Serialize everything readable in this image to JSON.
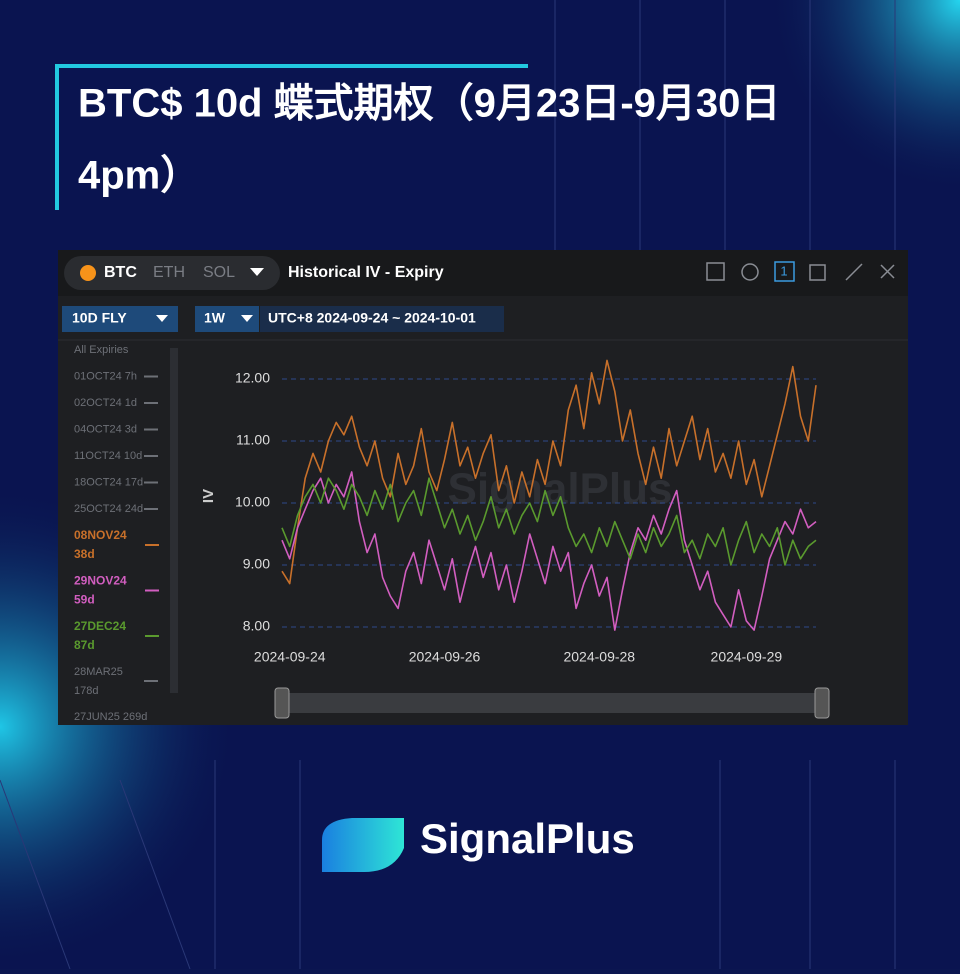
{
  "header": {
    "title_lines": [
      "BTC$ 10d 蝶式期权（9月23日-9月30日",
      "4pm）"
    ]
  },
  "ui": {
    "coins": [
      "BTC",
      "ETH",
      "SOL"
    ],
    "panel_title": "Historical IV - Expiry",
    "tool_badge": "1",
    "metric": "10D FLY",
    "period": "1W",
    "range": "UTC+8 2024-09-24 ~ 2024-10-01",
    "sidebar_top": [
      "All Expiries",
      "01OCT24 7h",
      "02OCT24 1d",
      "04OCT24 3d",
      "11OCT24 10d",
      "18OCT24 17d",
      "25OCT24 24d"
    ],
    "sidebar_bottom": [
      [
        "28MAR25",
        "178d"
      ],
      [
        "27JUN25 269d"
      ]
    ],
    "watermark": "SignalPlus"
  },
  "footer": {
    "brand": "SignalPlus"
  },
  "chart_data": {
    "type": "line",
    "y_label": "IV",
    "categories": [
      null,
      "2024-09-24",
      null,
      null,
      null,
      null,
      null,
      null,
      null,
      null,
      null,
      null,
      null,
      null,
      null,
      null,
      null,
      null,
      null,
      null,
      null,
      "2024-09-26",
      null,
      null,
      null,
      null,
      null,
      null,
      null,
      null,
      null,
      null,
      null,
      null,
      null,
      null,
      null,
      null,
      null,
      null,
      null,
      "2024-09-28",
      null,
      null,
      null,
      null,
      null,
      null,
      null,
      null,
      null,
      null,
      null,
      null,
      null,
      null,
      null,
      null,
      null,
      null,
      "2024-09-29",
      null,
      null,
      null,
      null,
      null,
      null,
      null,
      null,
      null
    ],
    "ylim": [
      7.75,
      12.4
    ],
    "yticks": [
      {
        "value": 8,
        "label": "8.00"
      },
      {
        "value": 9,
        "label": "9.00"
      },
      {
        "value": 10,
        "label": "10.00"
      },
      {
        "value": 11,
        "label": "11.00"
      },
      {
        "value": 12,
        "label": "12.00"
      }
    ],
    "grid": true,
    "series": [
      {
        "name": "08NOV24",
        "dte": "38d",
        "color": "#c8702a",
        "values": [
          8.9,
          8.7,
          9.6,
          10.4,
          10.8,
          10.5,
          11.0,
          11.3,
          11.1,
          11.4,
          10.9,
          10.6,
          11.0,
          10.4,
          10.1,
          10.8,
          10.3,
          10.6,
          11.2,
          10.5,
          10.2,
          10.7,
          11.3,
          10.6,
          10.9,
          10.4,
          10.8,
          11.1,
          10.2,
          10.6,
          10.0,
          10.5,
          10.1,
          10.7,
          10.3,
          11.0,
          10.6,
          11.5,
          11.9,
          11.2,
          12.1,
          11.6,
          12.3,
          11.8,
          11.0,
          11.5,
          10.8,
          10.3,
          10.9,
          10.4,
          11.2,
          10.6,
          11.0,
          11.4,
          10.7,
          11.2,
          10.5,
          10.8,
          10.4,
          11.0,
          10.3,
          10.7,
          10.1,
          10.6,
          11.1,
          11.6,
          12.2,
          11.4,
          11.0,
          11.9
        ]
      },
      {
        "name": "29NOV24",
        "dte": "59d",
        "color": "#d25ec0",
        "values": [
          9.4,
          9.1,
          9.6,
          9.9,
          10.2,
          10.4,
          10.0,
          10.3,
          10.1,
          10.5,
          9.7,
          9.2,
          9.5,
          8.8,
          8.5,
          8.3,
          8.9,
          9.2,
          8.7,
          9.4,
          9.0,
          8.6,
          9.1,
          8.4,
          8.9,
          9.3,
          8.8,
          9.2,
          8.6,
          9.0,
          8.4,
          8.9,
          9.5,
          9.1,
          8.7,
          9.3,
          8.9,
          9.2,
          8.3,
          8.7,
          9.0,
          8.5,
          8.8,
          7.95,
          8.6,
          9.2,
          9.6,
          9.4,
          9.8,
          9.5,
          9.9,
          10.2,
          9.4,
          9.0,
          8.6,
          8.9,
          8.4,
          8.2,
          8.0,
          8.6,
          8.1,
          7.95,
          8.5,
          9.1,
          9.4,
          9.7,
          9.5,
          9.9,
          9.6,
          9.7
        ]
      },
      {
        "name": "27DEC24",
        "dte": "87d",
        "color": "#5a9a2e",
        "values": [
          9.6,
          9.3,
          9.8,
          10.1,
          10.3,
          10.0,
          10.4,
          10.2,
          9.9,
          10.3,
          10.1,
          9.8,
          10.2,
          9.9,
          10.3,
          9.7,
          10.0,
          10.2,
          9.8,
          10.4,
          10.0,
          9.6,
          9.9,
          9.5,
          9.8,
          9.4,
          9.7,
          10.1,
          9.6,
          9.9,
          9.5,
          9.8,
          10.0,
          9.7,
          10.2,
          9.8,
          10.1,
          9.6,
          9.3,
          9.5,
          9.2,
          9.6,
          9.3,
          9.7,
          9.4,
          9.1,
          9.5,
          9.2,
          9.6,
          9.3,
          9.5,
          9.8,
          9.2,
          9.4,
          9.1,
          9.5,
          9.3,
          9.6,
          9.0,
          9.4,
          9.7,
          9.2,
          9.5,
          9.3,
          9.6,
          9.0,
          9.4,
          9.1,
          9.3,
          9.4
        ]
      }
    ]
  }
}
